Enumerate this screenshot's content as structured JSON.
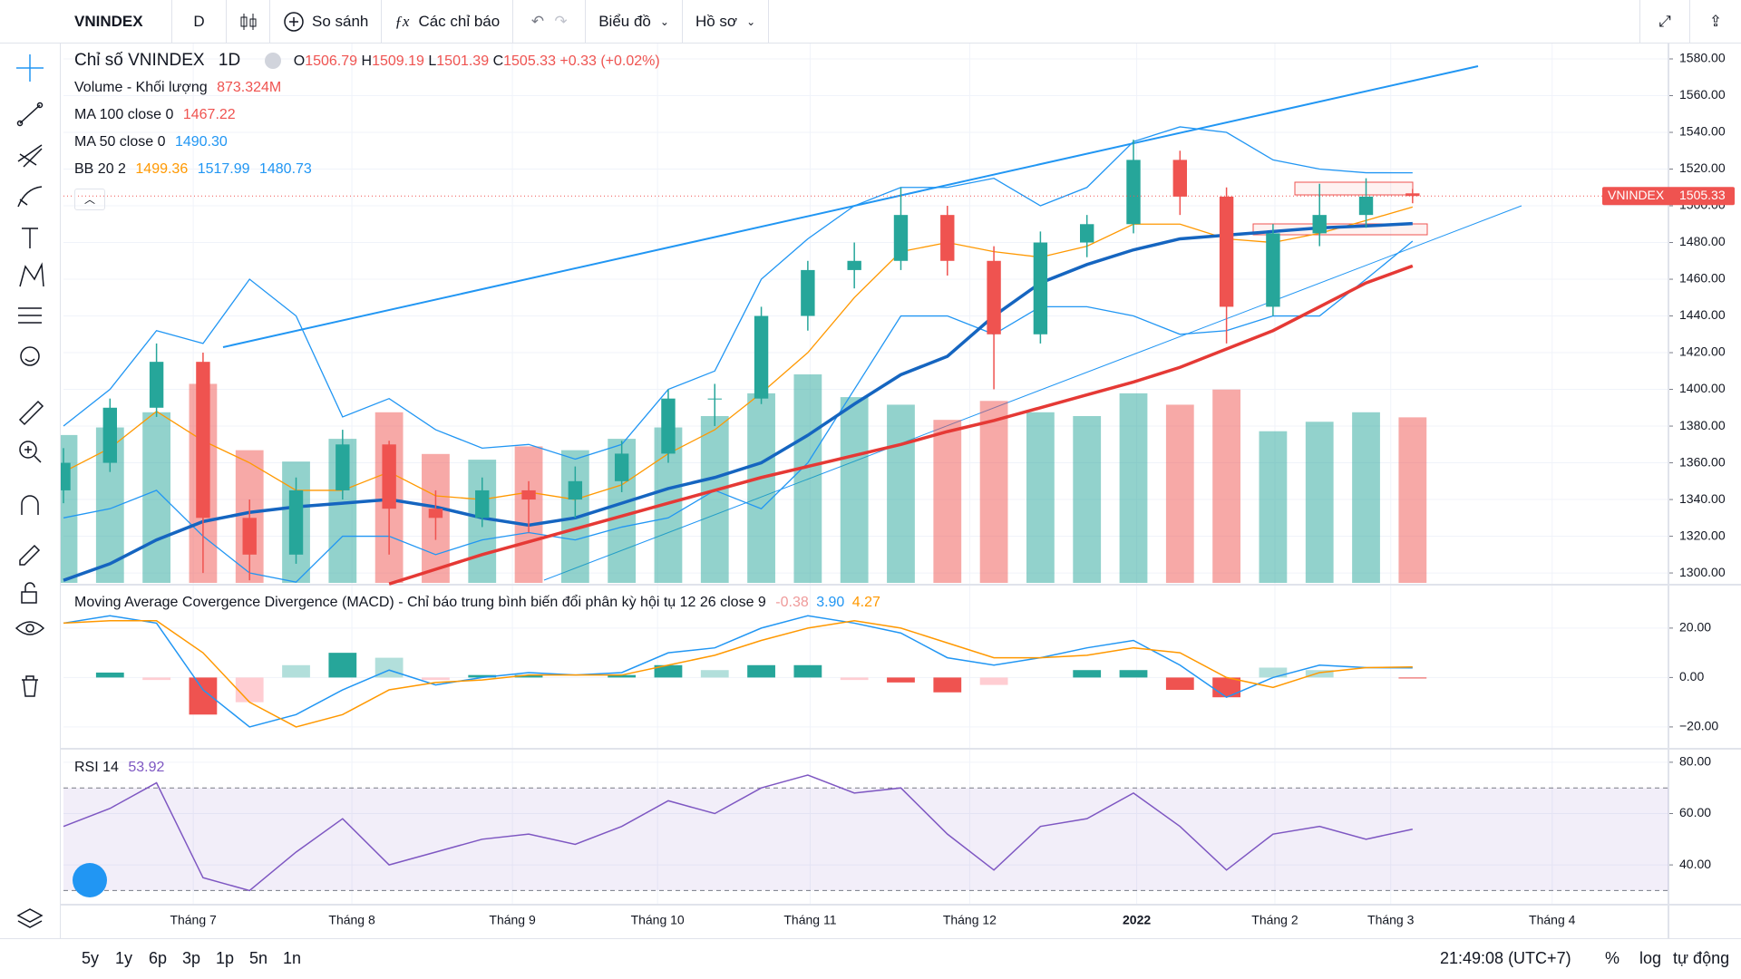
{
  "toolbar": {
    "symbol": "VNINDEX",
    "interval": "D",
    "compare": "So sánh",
    "indicators": "Các chỉ báo",
    "chart": "Biểu đồ",
    "profile": "Hồ sơ"
  },
  "legend": {
    "o": "O",
    "o_value": "1506.79",
    "h": "H",
    "h_value": "1509.19",
    "l": "L",
    "l_value": "1501.39",
    "c": "C",
    "c_value": "1505.33",
    "change": "+0.33 (+0.02%)",
    "volume_value": "873.324M",
    "ma100_value": "1467.22",
    "ma50_value": "1490.30",
    "bb_values": [
      "1499.36",
      "1517.99",
      "1480.73"
    ]
  },
  "last_price": {
    "name": "VNINDEX",
    "label": "1505.33"
  },
  "bottom": {
    "ranges": [
      "5y",
      "1y",
      "6p",
      "3p",
      "1p",
      "5n",
      "1n"
    ],
    "time": "21:49:08 (UTC+7)",
    "percent": "%",
    "log": "log",
    "auto": "tự động"
  },
  "chart_data": {
    "type": "candlestick",
    "title": "Chỉ số VNINDEX",
    "interval": "1D",
    "grid": true,
    "x": [
      0,
      1,
      2,
      3,
      4,
      5,
      6,
      7,
      8,
      9,
      10,
      11,
      12,
      13,
      14,
      15,
      16,
      17,
      18,
      19,
      20,
      21,
      22,
      23,
      24,
      25,
      26,
      27,
      28,
      29
    ],
    "xlim": [
      0,
      34.5
    ],
    "xticks": [
      {
        "value": 2.79,
        "label": "Tháng 7"
      },
      {
        "value": 6.2,
        "label": "Tháng 8"
      },
      {
        "value": 9.65,
        "label": "Tháng 9"
      },
      {
        "value": 12.77,
        "label": "Tháng 10"
      },
      {
        "value": 16.05,
        "label": "Tháng 11"
      },
      {
        "value": 19.48,
        "label": "Tháng 12"
      },
      {
        "value": 23.07,
        "label": "2022"
      },
      {
        "value": 26.04,
        "label": "Tháng 2"
      },
      {
        "value": 28.53,
        "label": "Tháng 3"
      },
      {
        "value": 32,
        "label": "Tháng 4"
      }
    ],
    "ylim": [
      1294.6,
      1588.4
    ],
    "yticks": [
      {
        "value": 1300,
        "label": "1300.00"
      },
      {
        "value": 1320,
        "label": "1320.00"
      },
      {
        "value": 1340,
        "label": "1340.00"
      },
      {
        "value": 1360,
        "label": "1360.00"
      },
      {
        "value": 1380,
        "label": "1380.00"
      },
      {
        "value": 1400,
        "label": "1400.00"
      },
      {
        "value": 1420,
        "label": "1420.00"
      },
      {
        "value": 1440,
        "label": "1440.00"
      },
      {
        "value": 1460,
        "label": "1460.00"
      },
      {
        "value": 1480,
        "label": "1480.00"
      },
      {
        "value": 1500,
        "label": "1500.00"
      },
      {
        "value": 1520,
        "label": "1520.00"
      },
      {
        "value": 1540,
        "label": "1540.00"
      },
      {
        "value": 1560,
        "label": "1560.00"
      },
      {
        "value": 1580,
        "label": "1580.00"
      }
    ],
    "up_color": "#26a69a",
    "down_color": "#ef5350",
    "open": [
      1345,
      1360,
      1390,
      1415,
      1330,
      1310,
      1345,
      1370,
      1335,
      1330,
      1345,
      1340,
      1350,
      1365,
      1395,
      1395,
      1440,
      1465,
      1470,
      1495,
      1470,
      1430,
      1480,
      1490,
      1525,
      1505,
      1445,
      1485,
      1495,
      1506.79
    ],
    "high": [
      1368,
      1395,
      1425,
      1420,
      1340,
      1352,
      1378,
      1372,
      1345,
      1352,
      1350,
      1358,
      1372,
      1400,
      1403,
      1445,
      1470,
      1480,
      1510,
      1500,
      1478,
      1486,
      1495,
      1536,
      1530,
      1510,
      1490,
      1512,
      1515,
      1509.19
    ],
    "low": [
      1338,
      1355,
      1385,
      1300,
      1296,
      1305,
      1340,
      1310,
      1318,
      1325,
      1322,
      1330,
      1344,
      1360,
      1380,
      1392,
      1432,
      1455,
      1465,
      1462,
      1400,
      1425,
      1472,
      1485,
      1495,
      1425,
      1440,
      1478,
      1488,
      1501.39
    ],
    "close": [
      1360,
      1390,
      1415,
      1330,
      1310,
      1345,
      1370,
      1335,
      1330,
      1345,
      1340,
      1350,
      1365,
      1395,
      1395,
      1440,
      1465,
      1470,
      1495,
      1470,
      1430,
      1480,
      1490,
      1525,
      1505,
      1445,
      1485,
      1495,
      1505,
      1505.33
    ],
    "volume": {
      "name": "Volume - Khối lượng",
      "values": [
        780,
        820,
        900,
        1050,
        700,
        640,
        760,
        900,
        680,
        650,
        720,
        700,
        760,
        820,
        880,
        1000,
        1100,
        980,
        940,
        860,
        960,
        900,
        880,
        1000,
        940,
        1020,
        800,
        850,
        900,
        873.324
      ]
    },
    "series": [
      {
        "name": "MA 100 close 0",
        "color": "#e53935",
        "values": [
          null,
          null,
          null,
          null,
          null,
          null,
          null,
          1294,
          1302,
          1310,
          1317,
          1324,
          1331,
          1338,
          1345,
          1352,
          1358,
          1364,
          1370,
          1377,
          1383,
          1390,
          1397,
          1404,
          1412,
          1422,
          1432,
          1445,
          1458,
          1467.22
        ]
      },
      {
        "name": "MA 50 close 0",
        "color": "#1565c0",
        "values": [
          1296,
          1305,
          1318,
          1328,
          1333,
          1336,
          1338,
          1340,
          1336,
          1330,
          1326,
          1330,
          1338,
          1346,
          1352,
          1360,
          1375,
          1392,
          1408,
          1418,
          1440,
          1458,
          1468,
          1476,
          1482,
          1484,
          1486,
          1488,
          1489,
          1490.3
        ]
      }
    ],
    "bb": {
      "name": "BB 20 2",
      "basis_color": "#ff9800",
      "band_color": "#2196f3",
      "basis": [
        1355,
        1368,
        1388,
        1372,
        1360,
        1345,
        1345,
        1355,
        1342,
        1340,
        1344,
        1340,
        1348,
        1365,
        1378,
        1398,
        1420,
        1450,
        1475,
        1480,
        1475,
        1472,
        1478,
        1490,
        1490,
        1482,
        1480,
        1485,
        1492,
        1499.36
      ],
      "upper": [
        1380,
        1400,
        1432,
        1425,
        1460,
        1440,
        1385,
        1395,
        1378,
        1368,
        1370,
        1362,
        1370,
        1400,
        1410,
        1460,
        1482,
        1500,
        1510,
        1510,
        1515,
        1500,
        1510,
        1535,
        1543,
        1540,
        1525,
        1520,
        1518,
        1517.99
      ],
      "lower": [
        1330,
        1335,
        1345,
        1320,
        1300,
        1295,
        1320,
        1320,
        1310,
        1318,
        1322,
        1318,
        1325,
        1330,
        1345,
        1335,
        1360,
        1400,
        1440,
        1440,
        1430,
        1445,
        1445,
        1440,
        1430,
        1432,
        1440,
        1440,
        1460,
        1480.73
      ]
    },
    "macd": {
      "title": "Moving Average Covergence Divergence (MACD) - Chỉ báo trung bình biến đổi phân kỳ hội tụ 12 26 close 9",
      "labels": [
        "-0.38",
        "3.90",
        "4.27"
      ],
      "ylim": [
        -28.1,
        36.1
      ],
      "yticks": [
        {
          "value": -20,
          "label": "−20.00"
        },
        {
          "value": 0,
          "label": "0.00"
        },
        {
          "value": 20,
          "label": "20.00"
        }
      ],
      "macd": [
        22,
        25,
        22,
        -5,
        -20,
        -15,
        -5,
        3,
        -3,
        0,
        2,
        1,
        2,
        10,
        12,
        20,
        25,
        22,
        18,
        8,
        5,
        8,
        12,
        15,
        5,
        -8,
        0,
        5,
        4,
        3.9
      ],
      "signal": [
        22,
        23,
        23,
        10,
        -10,
        -20,
        -15,
        -5,
        -2,
        -1,
        1,
        1,
        1,
        5,
        9,
        15,
        20,
        23,
        20,
        14,
        8,
        8,
        9,
        12,
        10,
        0,
        -4,
        2,
        4,
        4.27
      ],
      "hist": [
        0,
        2,
        -1,
        -15,
        -10,
        5,
        10,
        8,
        -1,
        1,
        1,
        0,
        1,
        5,
        3,
        5,
        5,
        -1,
        -2,
        -6,
        -3,
        0,
        3,
        3,
        -5,
        -8,
        4,
        3,
        0,
        -0.38
      ]
    },
    "rsi": {
      "name": "RSI 14",
      "label": "53.92",
      "color": "#7e57c2",
      "ylim": [
        24.5,
        84.2
      ],
      "band": [
        30,
        70
      ],
      "yticks": [
        {
          "value": 40,
          "label": "40.00"
        },
        {
          "value": 60,
          "label": "60.00"
        },
        {
          "value": 80,
          "label": "80.00"
        }
      ],
      "values": [
        55,
        62,
        72,
        35,
        30,
        45,
        58,
        40,
        45,
        50,
        52,
        48,
        55,
        65,
        60,
        70,
        75,
        68,
        70,
        52,
        38,
        55,
        58,
        68,
        55,
        38,
        52,
        55,
        50,
        53.92
      ]
    }
  }
}
